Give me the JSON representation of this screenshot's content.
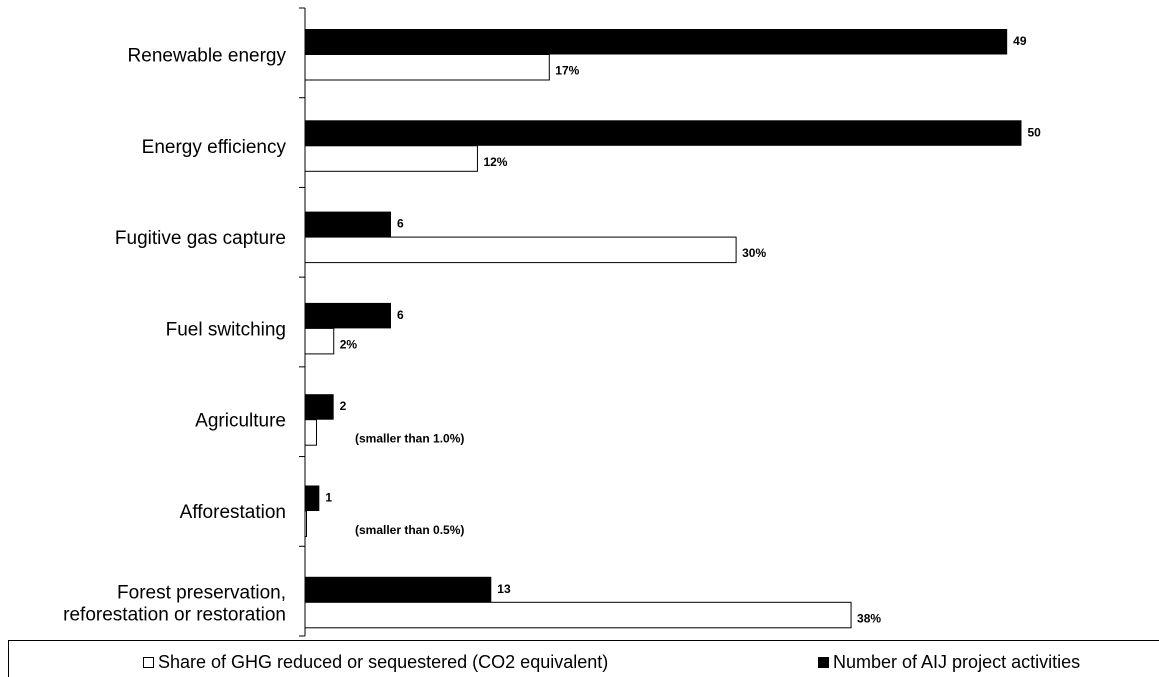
{
  "chart_data": {
    "type": "bar",
    "orientation": "horizontal",
    "categories": [
      [
        "Renewable energy"
      ],
      [
        "Energy efficiency"
      ],
      [
        "Fugitive gas capture"
      ],
      [
        "Fuel switching"
      ],
      [
        "Agriculture"
      ],
      [
        "Afforestation"
      ],
      [
        "Forest preservation,",
        "reforestation or restoration"
      ]
    ],
    "series": [
      {
        "name": "Number of AIJ project activities",
        "color": "#000000",
        "values": [
          49,
          50,
          6,
          6,
          2,
          1,
          13
        ],
        "labels": [
          "49",
          "50",
          "6",
          "6",
          "2",
          "1",
          "13"
        ]
      },
      {
        "name": "Share of GHG reduced or sequestered (CO2 equivalent)",
        "color": "#ffffff",
        "values": [
          17,
          12,
          30,
          2,
          0.8,
          0.1,
          38
        ],
        "labels": [
          "17%",
          "12%",
          "30%",
          "2%",
          "",
          "",
          "38%"
        ]
      }
    ],
    "annotations": [
      "",
      "",
      "",
      "",
      "(smaller than 1.0%)",
      "(smaller than 0.5%)",
      ""
    ],
    "legend_position": "bottom",
    "grid": false
  },
  "legend": {
    "share_label": "Share of GHG reduced or sequestered (CO2 equivalent)",
    "count_label": "Number of AIJ project activities"
  }
}
